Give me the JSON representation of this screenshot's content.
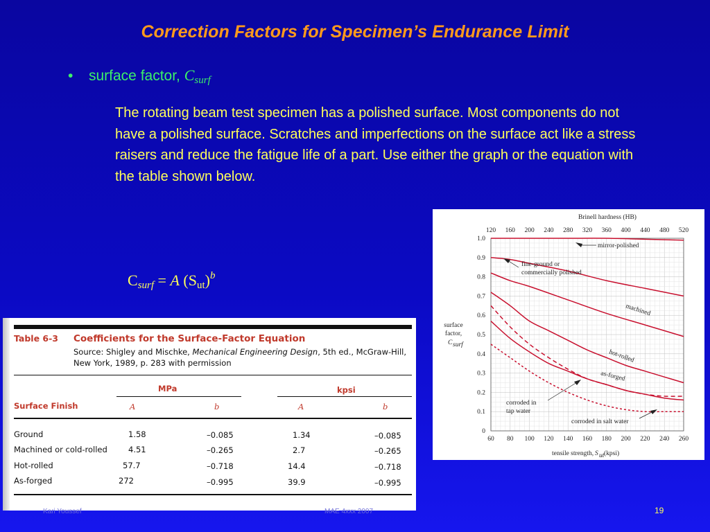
{
  "slide": {
    "title": "Correction Factors for Specimen’s Endurance Limit",
    "bullet": {
      "marker": "•",
      "text": "surface factor, ",
      "symbol": "C",
      "symbol_sub": "surf"
    },
    "paragraph": "The rotating beam test specimen has a polished surface. Most components do not have a polished surface. Scratches and imperfections on the surface act like a stress raisers and reduce the fatigue life of a part. Use either the graph or the equation with the table shown below.",
    "formula": {
      "c": "C",
      "c_sub": "surf",
      "eq": " = ",
      "a": "A",
      "open": " (S",
      "s_sub": "ut",
      "close": ")",
      "exp": "b"
    },
    "footer_left": "Kari Youssef",
    "footer_center": "MAE 4xxx  2007",
    "page_number": "19"
  },
  "table": {
    "label": "Table 6-3",
    "caption": "Coefficients for the Surface-Factor Equation",
    "source_prefix": "Source: Shigley and Mischke, ",
    "source_title": "Mechanical Engineering Design",
    "source_suffix": ", 5th ed., McGraw-Hill, New York, 1989, p. 283 with permission",
    "group_headers": [
      "MPa",
      "kpsi"
    ],
    "first_col_header": "Surface Finish",
    "sub_headers": [
      "A",
      "b",
      "A",
      "b"
    ],
    "rows": [
      {
        "finish": "Ground",
        "mpa_a": "1.58",
        "mpa_b": "–0.085",
        "kpsi_a": "1.34",
        "kpsi_b": "–0.085"
      },
      {
        "finish": "Machined or cold-rolled",
        "mpa_a": "4.51",
        "mpa_b": "–0.265",
        "kpsi_a": "2.7",
        "kpsi_b": "–0.265"
      },
      {
        "finish": "Hot-rolled",
        "mpa_a": "57.7",
        "mpa_b": "–0.718",
        "kpsi_a": "14.4",
        "kpsi_b": "–0.718"
      },
      {
        "finish": "As-forged",
        "mpa_a": "272",
        "mpa_b": "–0.995",
        "kpsi_a": "39.9",
        "kpsi_b": "–0.995"
      }
    ]
  },
  "chart_data": {
    "type": "line",
    "title": "",
    "top_axis_label": "Brinell hardness (HB)",
    "top_ticks": [
      "120",
      "160",
      "200",
      "240",
      "280",
      "320",
      "360",
      "400",
      "440",
      "480",
      "520"
    ],
    "xlabel_prefix": "tensile strength, ",
    "xlabel_sym": "S",
    "xlabel_sub": "ut",
    "xlabel_suffix": " (kpsi)",
    "ylabel_lines": [
      "surface",
      "factor,"
    ],
    "ylabel_sym": "C",
    "ylabel_sub": "surf",
    "x_ticks": [
      "60",
      "80",
      "100",
      "120",
      "140",
      "160",
      "180",
      "200",
      "220",
      "240",
      "260"
    ],
    "y_ticks": [
      "0",
      "0.1",
      "0.2",
      "0.3",
      "0.4",
      "0.5",
      "0.6",
      "0.7",
      "0.8",
      "0.9",
      "1.0"
    ],
    "xlim": [
      60,
      260
    ],
    "ylim": [
      0,
      1.0
    ],
    "grid": true,
    "series": [
      {
        "name": "mirror-polished",
        "style": "solid",
        "x": [
          60,
          100,
          140,
          180,
          220,
          260
        ],
        "y": [
          1.0,
          1.0,
          1.0,
          1.0,
          0.995,
          0.99
        ]
      },
      {
        "name": "fine-ground or commercially polished",
        "style": "solid",
        "x": [
          60,
          80,
          100,
          140,
          180,
          220,
          260
        ],
        "y": [
          0.9,
          0.89,
          0.87,
          0.83,
          0.78,
          0.74,
          0.7
        ]
      },
      {
        "name": "machined",
        "style": "solid",
        "x": [
          60,
          80,
          100,
          140,
          180,
          220,
          260
        ],
        "y": [
          0.82,
          0.78,
          0.75,
          0.68,
          0.61,
          0.55,
          0.49
        ]
      },
      {
        "name": "hot-rolled",
        "style": "solid",
        "x": [
          60,
          80,
          100,
          120,
          140,
          160,
          180,
          200,
          220,
          240,
          260
        ],
        "y": [
          0.72,
          0.65,
          0.57,
          0.52,
          0.47,
          0.42,
          0.38,
          0.34,
          0.31,
          0.28,
          0.25
        ]
      },
      {
        "name": "as-forged",
        "style": "solid",
        "x": [
          60,
          80,
          100,
          120,
          140,
          160,
          180,
          200,
          220,
          240,
          260
        ],
        "y": [
          0.57,
          0.48,
          0.41,
          0.35,
          0.31,
          0.27,
          0.24,
          0.21,
          0.19,
          0.17,
          0.16
        ]
      },
      {
        "name": "corroded in tap water",
        "style": "dashed",
        "x": [
          60,
          80,
          100,
          120,
          140,
          160,
          180,
          200,
          220,
          240,
          260
        ],
        "y": [
          0.65,
          0.54,
          0.45,
          0.38,
          0.32,
          0.27,
          0.24,
          0.21,
          0.19,
          0.18,
          0.18
        ]
      },
      {
        "name": "corroded in salt water",
        "style": "dashed",
        "x": [
          60,
          80,
          100,
          120,
          140,
          160,
          180,
          200,
          220,
          240,
          260
        ],
        "y": [
          0.45,
          0.38,
          0.31,
          0.25,
          0.2,
          0.16,
          0.13,
          0.11,
          0.1,
          0.1,
          0.1
        ]
      }
    ],
    "annotations": [
      "mirror-polished",
      "fine-ground or",
      "commercially polished",
      "machined",
      "hot-rolled",
      "as-forged",
      "corroded in",
      "tap water",
      "corroded in salt water"
    ],
    "line_color": "#c8102e"
  },
  "colors": {
    "title": "#ff9a1c",
    "bullet": "#3cf06a",
    "body": "#ffff5a",
    "table_accent": "#c0392b"
  }
}
